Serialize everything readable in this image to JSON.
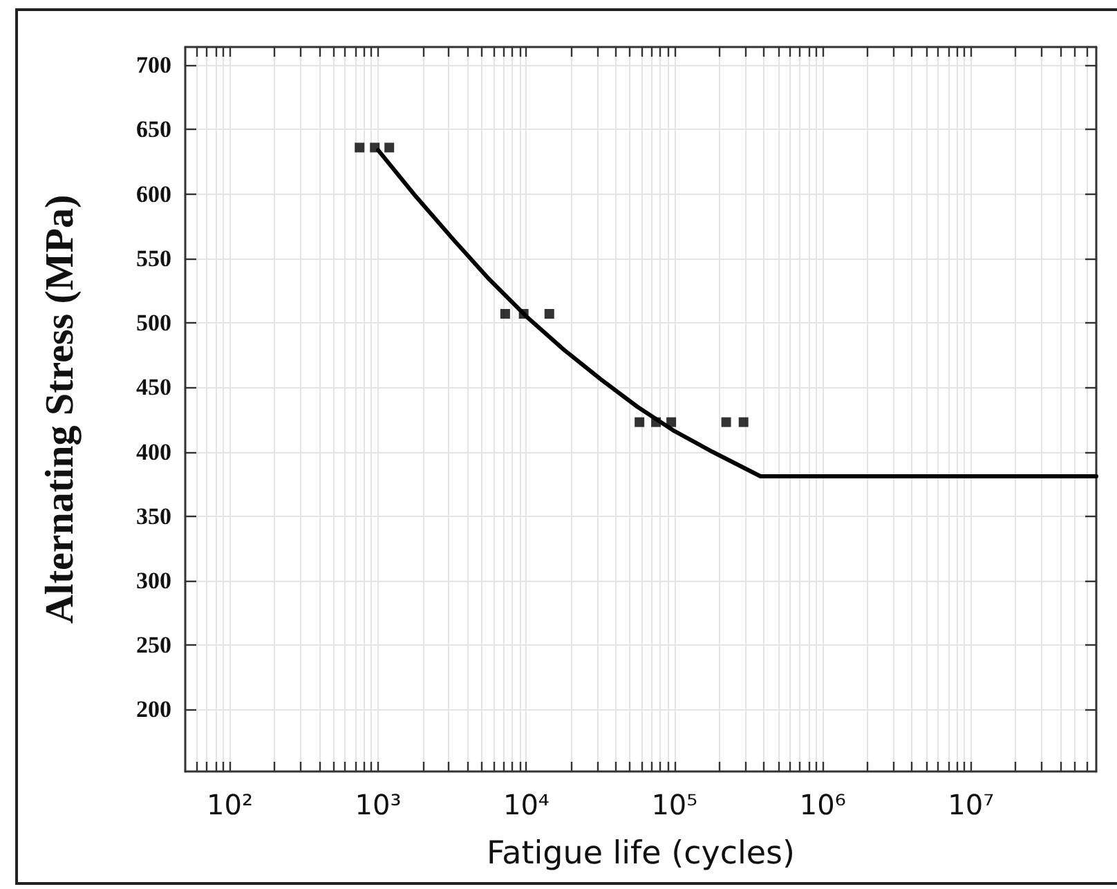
{
  "chart_data": {
    "type": "scatter",
    "xlabel": "Fatigue life (cycles)",
    "ylabel": "Alternating Stress (MPa)",
    "log": "x",
    "grid": true,
    "xlim": [
      50,
      70000000
    ],
    "xticks": [
      {
        "value": 60,
        "label": null
      },
      {
        "value": 70,
        "label": null
      },
      {
        "value": 80,
        "label": null
      },
      {
        "value": 90,
        "label": null
      },
      {
        "value": 100,
        "label": "10²"
      },
      {
        "value": 200,
        "label": null
      },
      {
        "value": 300,
        "label": null
      },
      {
        "value": 400,
        "label": null
      },
      {
        "value": 500,
        "label": null
      },
      {
        "value": 600,
        "label": null
      },
      {
        "value": 700,
        "label": null
      },
      {
        "value": 800,
        "label": null
      },
      {
        "value": 900,
        "label": null
      },
      {
        "value": 1000,
        "label": "10³"
      },
      {
        "value": 2000,
        "label": null
      },
      {
        "value": 3000,
        "label": null
      },
      {
        "value": 4000,
        "label": null
      },
      {
        "value": 5000,
        "label": null
      },
      {
        "value": 6000,
        "label": null
      },
      {
        "value": 7000,
        "label": null
      },
      {
        "value": 8000,
        "label": null
      },
      {
        "value": 9000,
        "label": null
      },
      {
        "value": 10000,
        "label": "10⁴"
      },
      {
        "value": 20000,
        "label": null
      },
      {
        "value": 30000,
        "label": null
      },
      {
        "value": 40000,
        "label": null
      },
      {
        "value": 50000,
        "label": null
      },
      {
        "value": 60000,
        "label": null
      },
      {
        "value": 70000,
        "label": null
      },
      {
        "value": 80000,
        "label": null
      },
      {
        "value": 90000,
        "label": null
      },
      {
        "value": 100000,
        "label": "10⁵"
      },
      {
        "value": 200000,
        "label": null
      },
      {
        "value": 300000,
        "label": null
      },
      {
        "value": 400000,
        "label": null
      },
      {
        "value": 500000,
        "label": null
      },
      {
        "value": 600000,
        "label": null
      },
      {
        "value": 700000,
        "label": null
      },
      {
        "value": 800000,
        "label": null
      },
      {
        "value": 900000,
        "label": null
      },
      {
        "value": 1000000,
        "label": "10⁶"
      },
      {
        "value": 2000000,
        "label": null
      },
      {
        "value": 3000000,
        "label": null
      },
      {
        "value": 4000000,
        "label": null
      },
      {
        "value": 5000000,
        "label": null
      },
      {
        "value": 6000000,
        "label": null
      },
      {
        "value": 7000000,
        "label": null
      },
      {
        "value": 8000000,
        "label": null
      },
      {
        "value": 9000000,
        "label": null
      },
      {
        "value": 10000000,
        "label": "10⁷"
      },
      {
        "value": 20000000,
        "label": null
      },
      {
        "value": 30000000,
        "label": null
      },
      {
        "value": 40000000,
        "label": null
      },
      {
        "value": 50000000,
        "label": null
      },
      {
        "value": 60000000,
        "label": null
      }
    ],
    "ylim": [
      152,
      714
    ],
    "yticks": [
      200,
      250,
      300,
      350,
      400,
      450,
      500,
      550,
      600,
      650,
      700
    ],
    "series": [
      {
        "color": "#000000",
        "marker": "square",
        "x": [
          750,
          950,
          1190,
          7200,
          9600,
          14300,
          58000,
          75000,
          95000,
          223000,
          292000
        ],
        "values": [
          636,
          636,
          636,
          507,
          507,
          507,
          423,
          423,
          423,
          423,
          423
        ]
      },
      {
        "type": "line",
        "color": "#000000",
        "marker": "none",
        "line_style": "solid",
        "x": [
          1000,
          1800,
          3200,
          5600,
          10000,
          18000,
          32000,
          56000,
          100000,
          180000,
          380000,
          70000000
        ],
        "values": [
          634,
          598,
          565,
          534,
          505,
          479,
          456,
          435,
          416,
          400,
          381,
          381
        ]
      }
    ]
  }
}
